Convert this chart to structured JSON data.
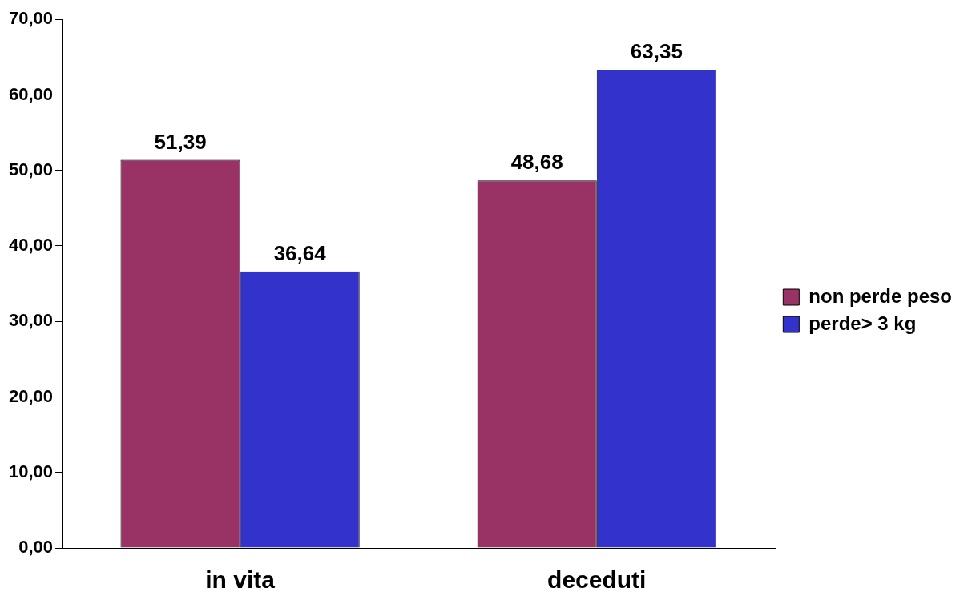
{
  "chart_data": {
    "type": "bar",
    "categories": [
      "in vita",
      "deceduti"
    ],
    "series": [
      {
        "name": "non perde peso",
        "color": "#993366",
        "values": [
          51.39,
          48.68
        ],
        "value_labels": [
          "51,39",
          "48,68"
        ]
      },
      {
        "name": "perde> 3 kg",
        "color": "#3333cc",
        "values": [
          36.64,
          63.35
        ],
        "value_labels": [
          "36,64",
          "63,35"
        ]
      }
    ],
    "ylim": [
      0,
      70
    ],
    "yticks": [
      {
        "value": 0,
        "label": "0,00"
      },
      {
        "value": 10,
        "label": "10,00"
      },
      {
        "value": 20,
        "label": "20,00"
      },
      {
        "value": 30,
        "label": "30,00"
      },
      {
        "value": 40,
        "label": "40,00"
      },
      {
        "value": 50,
        "label": "50,00"
      },
      {
        "value": 60,
        "label": "60,00"
      },
      {
        "value": 70,
        "label": "70,00"
      }
    ],
    "grid": false,
    "legend": "right"
  }
}
